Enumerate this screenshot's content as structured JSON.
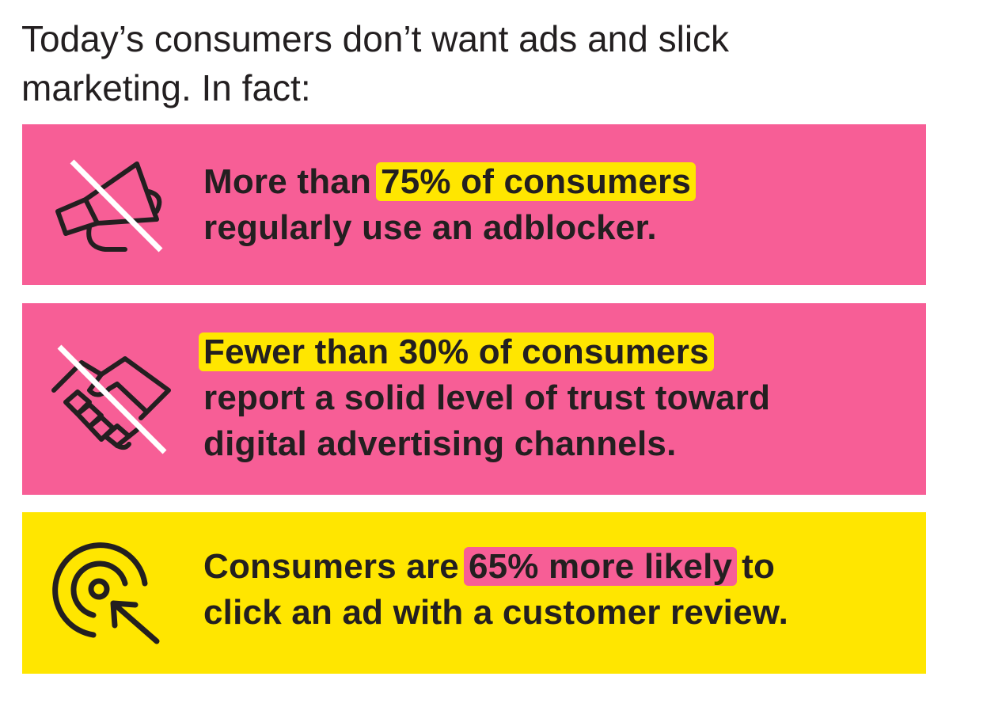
{
  "title": "Today’s consumers don’t want ads and slick marketing. In fact:",
  "cards": [
    {
      "color": "#f75e96",
      "highlight_color": "#ffe600",
      "lines": [
        [
          {
            "text": "More than"
          },
          {
            "text": "75% of consumers",
            "highlight": true
          }
        ],
        [
          {
            "text": "regularly use an adblocker."
          }
        ]
      ]
    },
    {
      "color": "#f75e96",
      "highlight_color": "#ffe600",
      "lines": [
        [
          {
            "text": "Fewer than 30% of consumers",
            "highlight": true
          }
        ],
        [
          {
            "text": "report a solid level of trust toward"
          }
        ],
        [
          {
            "text": "digital advertising channels."
          }
        ]
      ]
    },
    {
      "color": "#ffe600",
      "highlight_color": "#f75e96",
      "lines": [
        [
          {
            "text": "Consumers are"
          },
          {
            "text": "65% more likely",
            "highlight": true
          },
          {
            "text": "to"
          }
        ],
        [
          {
            "text": "click an ad with a customer review."
          }
        ]
      ]
    }
  ]
}
